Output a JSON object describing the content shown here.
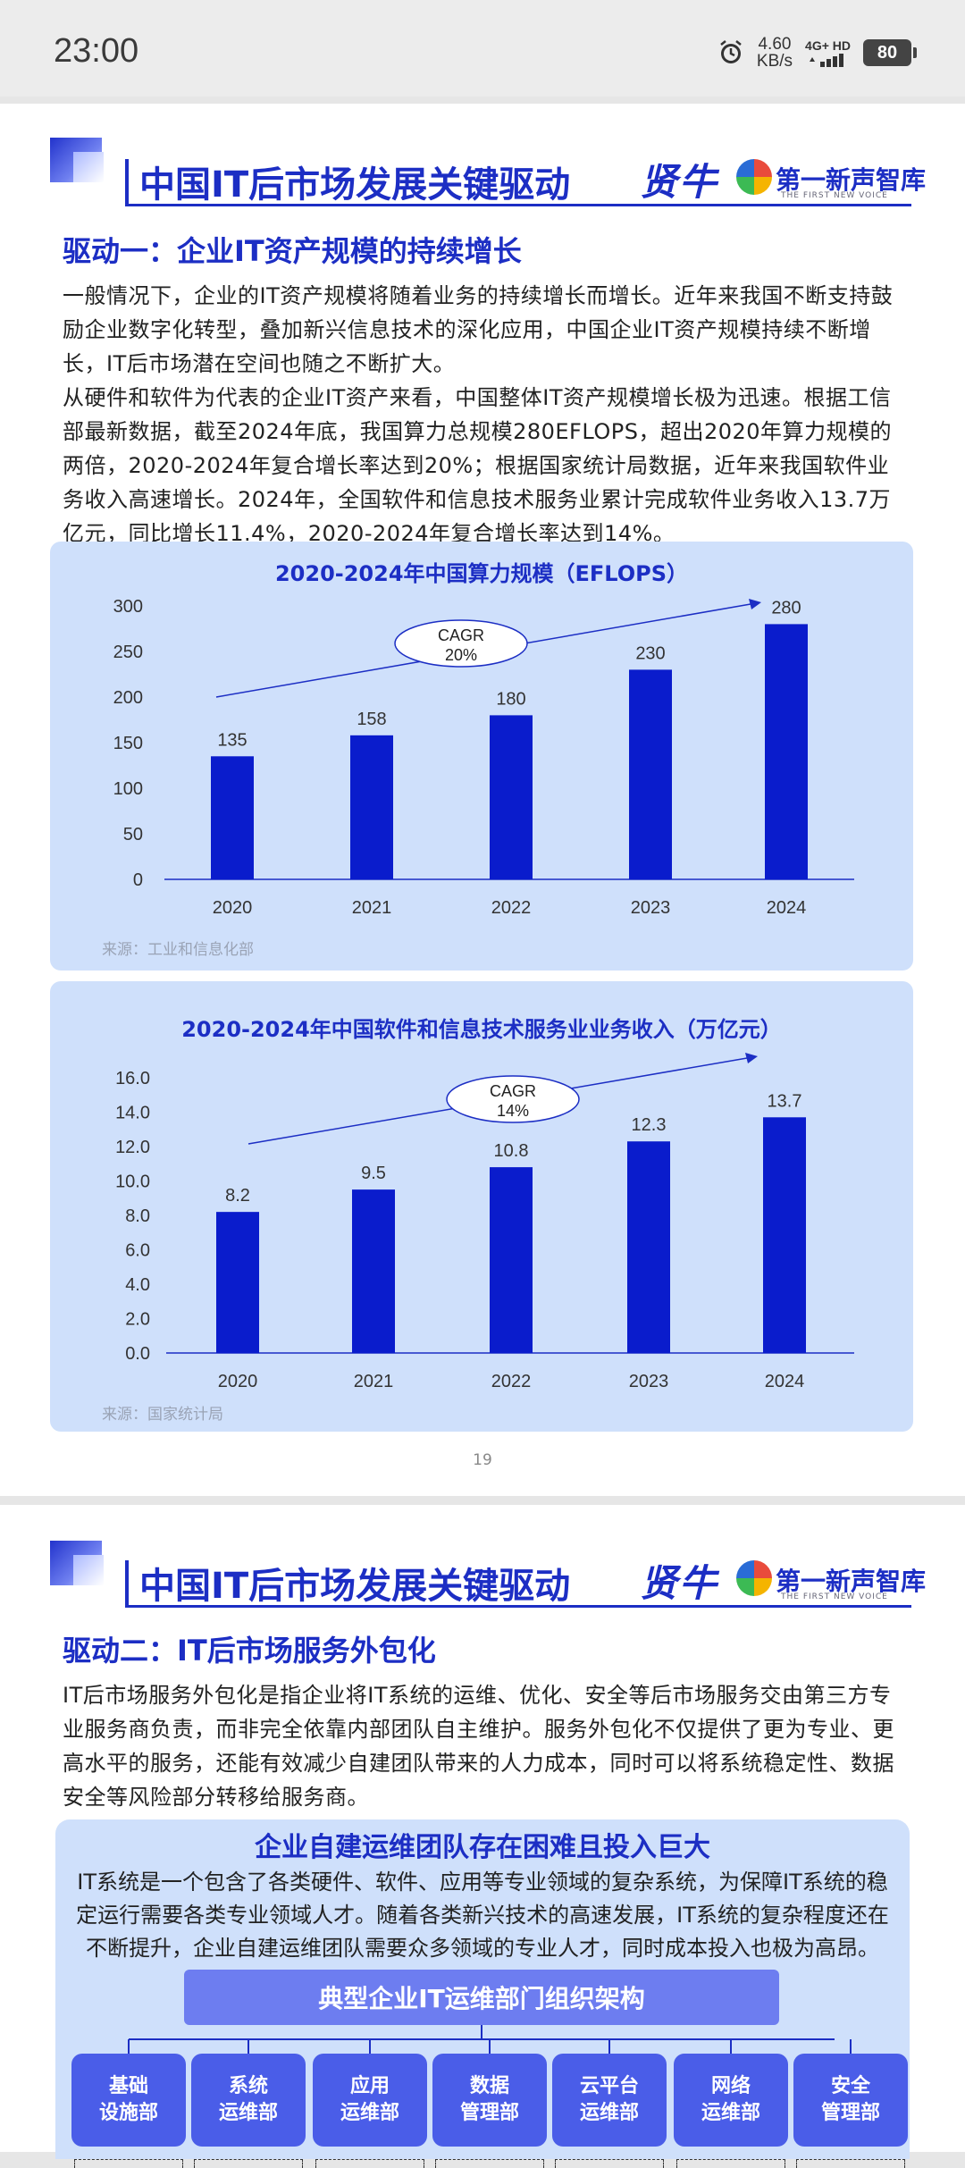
{
  "status": {
    "time": "23:00",
    "speed_value": "4.60",
    "speed_unit": "KB/s",
    "network": "4G+ HD",
    "battery": "80"
  },
  "header": {
    "title": "中国IT后市场发展关键驱动",
    "brand_left": "贤牛",
    "brand_right": "第一新声智库",
    "brand_sub": "THE FIRST NEW VOICE"
  },
  "page1": {
    "section_title": "驱动一：企业IT资产规模的持续增长",
    "paragraphs": [
      "一般情况下，企业的IT资产规模将随着业务的持续增长而增长。近年来我国不断支持鼓励企业数字化转型，叠加新兴信息技术的深化应用，中国企业IT资产规模持续不断增长，IT后市场潜在空间也随之不断扩大。",
      "从硬件和软件为代表的企业IT资产来看，中国整体IT资产规模增长极为迅速。根据工信部最新数据，截至2024年底，我国算力总规模280EFLOPS，超出2020年算力规模的两倍，2020-2024年复合增长率达到20%；根据国家统计局数据，近年来我国软件业务收入高速增长。2024年，全国软件和信息技术服务业累计完成软件业务收入13.7万亿元，同比增长11.4%，2020-2024年复合增长率达到14%。"
    ],
    "page_number": "19"
  },
  "chart_data": [
    {
      "type": "bar",
      "title": "2020-2024年中国算力规模（EFLOPS）",
      "categories": [
        "2020",
        "2021",
        "2022",
        "2023",
        "2024"
      ],
      "values": [
        135,
        158,
        180,
        230,
        280
      ],
      "value_labels": [
        "135",
        "158",
        "180",
        "230",
        "280"
      ],
      "ylim": [
        0,
        300
      ],
      "yticks": [
        "0",
        "50",
        "100",
        "150",
        "200",
        "250",
        "300"
      ],
      "annotation": [
        "CAGR",
        "20%"
      ],
      "source": "来源：工业和信息化部",
      "bar_color": "#0a1ccc"
    },
    {
      "type": "bar",
      "title": "2020-2024年中国软件和信息技术服务业业务收入（万亿元）",
      "categories": [
        "2020",
        "2021",
        "2022",
        "2023",
        "2024"
      ],
      "values": [
        8.2,
        9.5,
        10.8,
        12.3,
        13.7
      ],
      "value_labels": [
        "8.2",
        "9.5",
        "10.8",
        "12.3",
        "13.7"
      ],
      "ylim": [
        0,
        16
      ],
      "yticks": [
        "0.0",
        "2.0",
        "4.0",
        "6.0",
        "8.0",
        "10.0",
        "12.0",
        "14.0",
        "16.0"
      ],
      "annotation": [
        "CAGR",
        "14%"
      ],
      "source": "来源：国家统计局",
      "bar_color": "#0a1ccc"
    }
  ],
  "page2": {
    "section_title": "驱动二：IT后市场服务外包化",
    "paragraph": "IT后市场服务外包化是指企业将IT系统的运维、优化、安全等后市场服务交由第三方专业服务商负责，而非完全依靠内部团队自主维护。服务外包化不仅提供了更为专业、更高水平的服务，还能有效减少自建团队带来的人力成本，同时可以将系统稳定性、数据安全等风险部分转移给服务商。",
    "panel_title": "企业自建运维团队存在困难且投入巨大",
    "panel_text": "IT系统是一个包含了各类硬件、软件、应用等专业领域的复杂系统，为保障IT系统的稳定运行需要各类专业领域人才。随着各类新兴技术的高速发展，IT系统的复杂程度还在不断提升，企业自建运维团队需要众多领域的专业人才，同时成本投入也极为高昂。",
    "org_title": "典型企业IT运维部门组织架构",
    "org_units": [
      "基础\n设施部",
      "系统\n运维部",
      "应用\n运维部",
      "数据\n管理部",
      "云平台\n运维部",
      "网络\n运维部",
      "安全\n管理部"
    ]
  }
}
